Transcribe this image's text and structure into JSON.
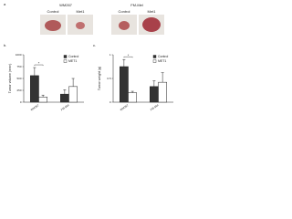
{
  "panel_a": {
    "label": "a",
    "groups": [
      {
        "title": "WM267",
        "items": [
          "Control",
          "Met1"
        ]
      },
      {
        "title": "FM-Mel",
        "items": [
          "Control",
          "Met1"
        ]
      }
    ]
  },
  "chart_data": [
    {
      "type": "bar",
      "panel": "b.",
      "ylabel": "Tumor volume (mm³)",
      "categories": [
        "WM267",
        "FM-Mel"
      ],
      "series": [
        {
          "name": "Control",
          "color": "#333333",
          "values": [
            560,
            170
          ],
          "errors": [
            170,
            90
          ]
        },
        {
          "name": "MET1",
          "color": "#ffffff",
          "values": [
            110,
            330
          ],
          "errors": [
            40,
            170
          ]
        }
      ],
      "ylim": [
        0,
        1000
      ],
      "yticks": [
        0,
        250,
        500,
        750,
        1000
      ],
      "annotation": "*"
    },
    {
      "type": "bar",
      "panel": "c.",
      "ylabel": "Tumor weight (g)",
      "categories": [
        "WM267",
        "FM-Mel"
      ],
      "series": [
        {
          "name": "Control",
          "color": "#333333",
          "values": [
            0.75,
            0.33
          ],
          "errors": [
            0.15,
            0.12
          ]
        },
        {
          "name": "MET1",
          "color": "#ffffff",
          "values": [
            0.2,
            0.42
          ],
          "errors": [
            0.03,
            0.2
          ]
        }
      ],
      "ylim": [
        0,
        1
      ],
      "yticks": [
        0,
        0.5,
        1
      ],
      "annotation": "*"
    }
  ]
}
